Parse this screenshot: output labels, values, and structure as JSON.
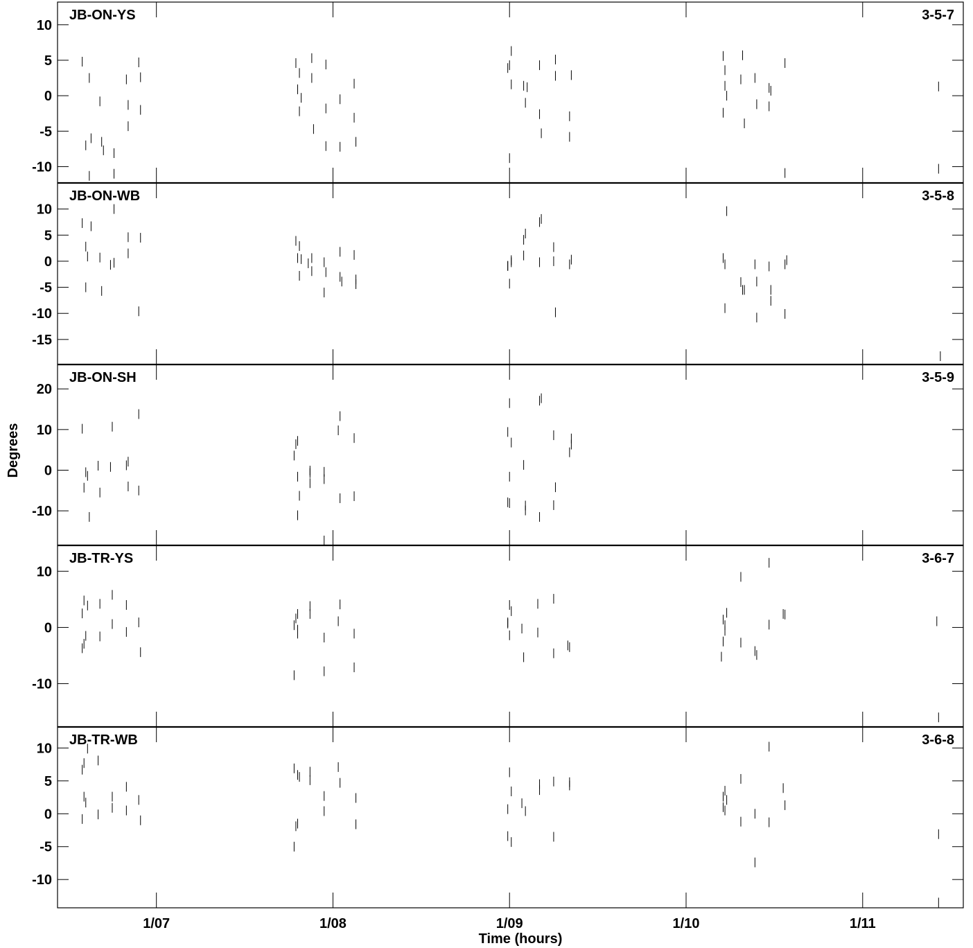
{
  "chart_data": {
    "type": "scatter",
    "xlabel": "Time (hours)",
    "ylabel": "Degrees",
    "x_ticks": [
      {
        "value": 7,
        "label": "1/07"
      },
      {
        "value": 8,
        "label": "1/08"
      },
      {
        "value": 9,
        "label": "1/09"
      },
      {
        "value": 10,
        "label": "1/10"
      },
      {
        "value": 11,
        "label": "1/11"
      }
    ],
    "xlim": [
      6.44,
      11.57
    ],
    "marker": "short vertical bar",
    "panels": [
      {
        "baseline": "JB-ON-YS",
        "code": "3-5-7",
        "ylim": [
          -12.3,
          13.2
        ],
        "yticks": [
          10,
          5,
          0,
          -5,
          -10
        ],
        "points": [
          [
            6.58,
            4.8
          ],
          [
            6.6,
            -7
          ],
          [
            6.62,
            -11.3
          ],
          [
            6.62,
            2.5
          ],
          [
            6.63,
            -6
          ],
          [
            6.68,
            -0.8
          ],
          [
            6.69,
            -6.5
          ],
          [
            6.7,
            -7.7
          ],
          [
            6.76,
            -11
          ],
          [
            6.76,
            -8.1
          ],
          [
            6.83,
            2.3
          ],
          [
            6.84,
            -1.3
          ],
          [
            6.84,
            -4.3
          ],
          [
            6.9,
            4.7
          ],
          [
            6.91,
            -2
          ],
          [
            6.91,
            2.6
          ],
          [
            7.79,
            4.6
          ],
          [
            7.8,
            0.9
          ],
          [
            7.81,
            -2.2
          ],
          [
            7.81,
            3.2
          ],
          [
            7.82,
            -0.3
          ],
          [
            7.88,
            5.3
          ],
          [
            7.88,
            2.5
          ],
          [
            7.89,
            -4.7
          ],
          [
            7.96,
            4.4
          ],
          [
            7.96,
            -1.8
          ],
          [
            7.96,
            -7.1
          ],
          [
            8.04,
            -0.5
          ],
          [
            8.04,
            -7.2
          ],
          [
            8.12,
            1.7
          ],
          [
            8.12,
            -3.1
          ],
          [
            8.13,
            -6.5
          ],
          [
            8.99,
            3.9
          ],
          [
            9.0,
            -8.8
          ],
          [
            9.0,
            4.3
          ],
          [
            9.01,
            1.6
          ],
          [
            9.01,
            6.3
          ],
          [
            9.08,
            1.4
          ],
          [
            9.09,
            -1
          ],
          [
            9.1,
            1.2
          ],
          [
            9.17,
            4.3
          ],
          [
            9.17,
            -2.6
          ],
          [
            9.18,
            -5.3
          ],
          [
            9.26,
            2.8
          ],
          [
            9.26,
            5.1
          ],
          [
            9.34,
            -2.9
          ],
          [
            9.34,
            -5.8
          ],
          [
            9.35,
            2.9
          ],
          [
            10.21,
            5.6
          ],
          [
            10.21,
            -2.4
          ],
          [
            10.22,
            3.6
          ],
          [
            10.22,
            1.4
          ],
          [
            10.23,
            0
          ],
          [
            10.31,
            2.3
          ],
          [
            10.32,
            5.7
          ],
          [
            10.33,
            -3.9
          ],
          [
            10.39,
            2.5
          ],
          [
            10.4,
            -1.2
          ],
          [
            10.47,
            -1.5
          ],
          [
            10.47,
            1.1
          ],
          [
            10.48,
            0.7
          ],
          [
            10.56,
            4.6
          ],
          [
            10.56,
            -10.9
          ],
          [
            11.43,
            1.3
          ],
          [
            11.43,
            -10.3
          ]
        ]
      },
      {
        "baseline": "JB-ON-WB",
        "code": "3-5-8",
        "ylim": [
          -19.8,
          15
        ],
        "yticks": [
          10,
          5,
          0,
          -5,
          -10,
          -15
        ],
        "points": [
          [
            6.58,
            7.3
          ],
          [
            6.6,
            -5
          ],
          [
            6.6,
            2.8
          ],
          [
            6.61,
            0.9
          ],
          [
            6.63,
            6.7
          ],
          [
            6.68,
            0.7
          ],
          [
            6.69,
            -5.7
          ],
          [
            6.74,
            -0.7
          ],
          [
            6.76,
            -0.3
          ],
          [
            6.76,
            10
          ],
          [
            6.84,
            4.6
          ],
          [
            6.84,
            1.5
          ],
          [
            6.9,
            -9.6
          ],
          [
            6.91,
            4.5
          ],
          [
            7.79,
            3.9
          ],
          [
            7.8,
            0.6
          ],
          [
            7.81,
            2.9
          ],
          [
            7.81,
            -2.8
          ],
          [
            7.82,
            0.4
          ],
          [
            7.86,
            -0.4
          ],
          [
            7.88,
            0.6
          ],
          [
            7.88,
            -1.9
          ],
          [
            7.95,
            -0.2
          ],
          [
            7.95,
            -6
          ],
          [
            7.96,
            -2.1
          ],
          [
            8.04,
            1.8
          ],
          [
            8.04,
            -3
          ],
          [
            8.05,
            -3.9
          ],
          [
            8.12,
            1.2
          ],
          [
            8.13,
            -3.5
          ],
          [
            8.13,
            -4.4
          ],
          [
            8.99,
            -0.9
          ],
          [
            8.99,
            -0.9
          ],
          [
            9.0,
            -4.3
          ],
          [
            9.01,
            -0.2
          ],
          [
            9.01,
            0.2
          ],
          [
            9.08,
            4.1
          ],
          [
            9.08,
            1.1
          ],
          [
            9.09,
            5.3
          ],
          [
            9.17,
            7.5
          ],
          [
            9.17,
            -0.2
          ],
          [
            9.18,
            8.1
          ],
          [
            9.25,
            2.7
          ],
          [
            9.25,
            0
          ],
          [
            9.26,
            -9.8
          ],
          [
            9.34,
            -0.6
          ],
          [
            9.35,
            0.3
          ],
          [
            10.21,
            0.6
          ],
          [
            10.22,
            -0.6
          ],
          [
            10.22,
            -9
          ],
          [
            10.23,
            9.6
          ],
          [
            10.31,
            -4
          ],
          [
            10.32,
            -5.5
          ],
          [
            10.33,
            -5.5
          ],
          [
            10.39,
            -0.6
          ],
          [
            10.4,
            -3.9
          ],
          [
            10.4,
            -10.8
          ],
          [
            10.47,
            -1
          ],
          [
            10.48,
            -5.5
          ],
          [
            10.48,
            -7.6
          ],
          [
            10.56,
            -10.1
          ],
          [
            10.56,
            -0.6
          ],
          [
            10.57,
            0.2
          ],
          [
            11.44,
            -18.2
          ]
        ]
      },
      {
        "baseline": "JB-ON-SH",
        "code": "3-5-9",
        "ylim": [
          -18.5,
          26
        ],
        "yticks": [
          20,
          10,
          0,
          -10
        ],
        "points": [
          [
            6.58,
            10.2
          ],
          [
            6.59,
            -4.3
          ],
          [
            6.6,
            -0.5
          ],
          [
            6.61,
            -1.4
          ],
          [
            6.62,
            -11.5
          ],
          [
            6.67,
            1.1
          ],
          [
            6.68,
            -5.5
          ],
          [
            6.74,
            0.8
          ],
          [
            6.75,
            10.7
          ],
          [
            6.83,
            1.2
          ],
          [
            6.84,
            -4
          ],
          [
            6.84,
            2.1
          ],
          [
            6.9,
            -5
          ],
          [
            6.9,
            13.8
          ],
          [
            7.78,
            3.6
          ],
          [
            7.79,
            6.4
          ],
          [
            7.8,
            7.2
          ],
          [
            7.8,
            -11.1
          ],
          [
            7.8,
            -1.6
          ],
          [
            7.81,
            -6.3
          ],
          [
            7.87,
            -0.1
          ],
          [
            7.87,
            -3.2
          ],
          [
            7.87,
            -0.7
          ],
          [
            7.95,
            -2.2
          ],
          [
            7.95,
            -0.4
          ],
          [
            7.95,
            -17.3
          ],
          [
            8.03,
            9.8
          ],
          [
            8.04,
            13.3
          ],
          [
            8.04,
            -6.9
          ],
          [
            8.12,
            -6.4
          ],
          [
            8.12,
            7.9
          ],
          [
            8.99,
            9.4
          ],
          [
            8.99,
            -7.9
          ],
          [
            9.0,
            -8.1
          ],
          [
            9.0,
            -1.6
          ],
          [
            9.0,
            16.5
          ],
          [
            9.01,
            6.8
          ],
          [
            9.08,
            1.3
          ],
          [
            9.09,
            -9.9
          ],
          [
            9.09,
            -8.7
          ],
          [
            9.17,
            17.1
          ],
          [
            9.17,
            -11.5
          ],
          [
            9.18,
            17.7
          ],
          [
            9.25,
            -8.6
          ],
          [
            9.25,
            8.6
          ],
          [
            9.26,
            -4.2
          ],
          [
            9.34,
            4.4
          ],
          [
            9.35,
            7.8
          ],
          [
            9.35,
            6.3
          ]
        ]
      },
      {
        "baseline": "JB-TR-YS",
        "code": "3-6-7",
        "ylim": [
          -17.7,
          14.6
        ],
        "yticks": [
          10,
          0,
          -10
        ],
        "points": [
          [
            6.58,
            -3.7
          ],
          [
            6.58,
            2.5
          ],
          [
            6.59,
            4.8
          ],
          [
            6.59,
            -2.9
          ],
          [
            6.6,
            -1.5
          ],
          [
            6.61,
            3.9
          ],
          [
            6.68,
            -1.6
          ],
          [
            6.68,
            4.2
          ],
          [
            6.75,
            5.8
          ],
          [
            6.75,
            0.6
          ],
          [
            6.83,
            4
          ],
          [
            6.83,
            -0.8
          ],
          [
            6.9,
            0.9
          ],
          [
            6.91,
            -4.4
          ],
          [
            7.78,
            0.4
          ],
          [
            7.78,
            -8.5
          ],
          [
            7.79,
            1.6
          ],
          [
            7.8,
            -0.4
          ],
          [
            7.8,
            -1.1
          ],
          [
            7.8,
            2.4
          ],
          [
            7.87,
            2.4
          ],
          [
            7.87,
            3.8
          ],
          [
            7.95,
            -1.8
          ],
          [
            7.95,
            -7.8
          ],
          [
            8.03,
            1.1
          ],
          [
            8.04,
            4.1
          ],
          [
            8.12,
            -7.1
          ],
          [
            8.12,
            -1.1
          ],
          [
            8.99,
            0.9
          ],
          [
            8.99,
            0.7
          ],
          [
            9.0,
            4
          ],
          [
            9.0,
            -1.4
          ],
          [
            9.01,
            2.9
          ],
          [
            9.07,
            -0.2
          ],
          [
            9.08,
            -5.3
          ],
          [
            9.16,
            4.2
          ],
          [
            9.16,
            -0.9
          ],
          [
            9.25,
            -4.6
          ],
          [
            9.25,
            5.1
          ],
          [
            9.33,
            -3.2
          ],
          [
            9.34,
            -3.5
          ],
          [
            10.2,
            -5.2
          ],
          [
            10.21,
            -2.5
          ],
          [
            10.21,
            1.4
          ],
          [
            10.22,
            -0.6
          ],
          [
            10.22,
            0.4
          ],
          [
            10.23,
            2.6
          ],
          [
            10.31,
            -2.7
          ],
          [
            10.31,
            9
          ],
          [
            10.39,
            -4.2
          ],
          [
            10.4,
            -4.9
          ],
          [
            10.47,
            11.5
          ],
          [
            10.47,
            0.5
          ],
          [
            10.55,
            2.4
          ],
          [
            10.56,
            2.3
          ],
          [
            11.42,
            1.1
          ],
          [
            11.43,
            -16
          ]
        ]
      },
      {
        "baseline": "JB-TR-WB",
        "code": "3-6-8",
        "ylim": [
          -14.3,
          13.2
        ],
        "yticks": [
          10,
          5,
          0,
          -5,
          -10
        ],
        "points": [
          [
            6.58,
            -0.8
          ],
          [
            6.58,
            6.7
          ],
          [
            6.59,
            2.6
          ],
          [
            6.59,
            7.7
          ],
          [
            6.6,
            1.7
          ],
          [
            6.61,
            9.9
          ],
          [
            6.67,
            8.1
          ],
          [
            6.67,
            -0.1
          ],
          [
            6.75,
            2.6
          ],
          [
            6.75,
            0.9
          ],
          [
            6.83,
            4.1
          ],
          [
            6.83,
            0.5
          ],
          [
            6.9,
            2.1
          ],
          [
            6.91,
            -1
          ],
          [
            7.78,
            6.9
          ],
          [
            7.78,
            -5
          ],
          [
            7.79,
            -1.9
          ],
          [
            7.8,
            -1.5
          ],
          [
            7.8,
            5.9
          ],
          [
            7.81,
            5.6
          ],
          [
            7.87,
            6.4
          ],
          [
            7.87,
            5.1
          ],
          [
            7.95,
            2.7
          ],
          [
            7.95,
            0.4
          ],
          [
            8.03,
            7.1
          ],
          [
            8.04,
            4.7
          ],
          [
            8.13,
            2.4
          ],
          [
            8.13,
            -1.6
          ],
          [
            8.99,
            -3.4
          ],
          [
            8.99,
            0.7
          ],
          [
            9.0,
            6.3
          ],
          [
            9.01,
            -4.3
          ],
          [
            9.01,
            3.4
          ],
          [
            9.07,
            1.6
          ],
          [
            9.09,
            0.4
          ],
          [
            9.17,
            4.5
          ],
          [
            9.17,
            3.6
          ],
          [
            9.25,
            4.9
          ],
          [
            9.25,
            -3.5
          ],
          [
            9.34,
            4.3
          ],
          [
            9.34,
            4.8
          ],
          [
            10.21,
            2.6
          ],
          [
            10.21,
            1
          ],
          [
            10.22,
            3.5
          ],
          [
            10.22,
            0.5
          ],
          [
            10.23,
            2.1
          ],
          [
            10.31,
            -1.2
          ],
          [
            10.31,
            5.3
          ],
          [
            10.39,
            0
          ],
          [
            10.39,
            -7.4
          ],
          [
            10.47,
            10.2
          ],
          [
            10.47,
            -1.3
          ],
          [
            10.55,
            3.9
          ],
          [
            10.56,
            1.3
          ],
          [
            11.43,
            -3.1
          ],
          [
            11.43,
            -13.5
          ]
        ]
      }
    ]
  }
}
